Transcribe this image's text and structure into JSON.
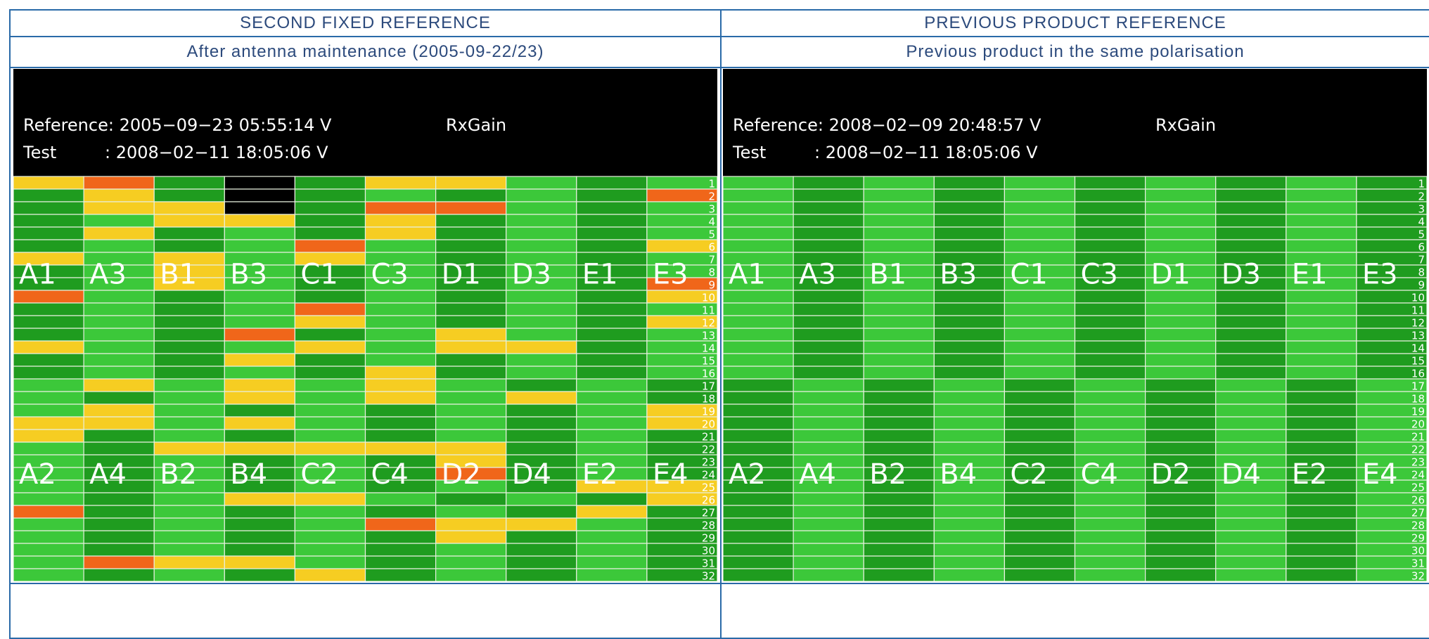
{
  "table": {
    "headers": [
      "SECOND FIXED REFERENCE",
      "PREVIOUS PRODUCT REFERENCE"
    ],
    "subheaders": [
      "After antenna maintenance (2005-09-22/23)",
      "Previous product in the same polarisation"
    ]
  },
  "palette": {
    "d": "#1f9c1f",
    "l": "#3cc83a",
    "y": "#f6cd22",
    "o": "#f0661a",
    "k": "#000000"
  },
  "column_labels_top": [
    "A1",
    "A3",
    "B1",
    "B3",
    "C1",
    "C3",
    "D1",
    "D3",
    "E1",
    "E3"
  ],
  "column_labels_bottom": [
    "A2",
    "A4",
    "B2",
    "B4",
    "C2",
    "C4",
    "D2",
    "D4",
    "E2",
    "E4"
  ],
  "row_labels": [
    "1",
    "2",
    "3",
    "4",
    "5",
    "6",
    "7",
    "8",
    "9",
    "10",
    "11",
    "12",
    "13",
    "14",
    "15",
    "16",
    "17",
    "18",
    "19",
    "20",
    "21",
    "22",
    "23",
    "24",
    "25",
    "26",
    "27",
    "28",
    "29",
    "30",
    "31",
    "32"
  ],
  "panels": [
    {
      "reference": "Reference: 2005−09−23 05:55:14 V",
      "parameter": "RxGain",
      "test_label": "Test",
      "test": ": 2008−02−11 18:05:06 V",
      "cells": [
        "yodkdyyldl",
        "dydkdldldo",
        "dyykdooldl",
        "dlyydydldl",
        "dydldydldl",
        "dldloldldy",
        "ylylyldldl",
        "dlyldldldl",
        "dlyldldldo",
        "oldldldldy",
        "dldloldldl",
        "dldlyldldy",
        "dldodlyldl",
        "yldlylyydl",
        "dldydldldl",
        "dldldydldl",
        "lylylyldld",
        "ldlylylyld",
        "lyldldldly",
        "yylyldldly",
        "ydldldldld",
        "ldyyyyydld",
        "ldldldydld",
        "ldldldodld",
        "ldldldldyy",
        "ldlyyldldy",
        "odldldldyd",
        "ldldloyyld",
        "ldldldydld",
        "ldldldldld",
        "loyyldldld",
        "ldldydldld"
      ]
    },
    {
      "reference": "Reference: 2008−02−09 20:48:57 V",
      "parameter": "RxGain",
      "test_label": "Test",
      "test": ": 2008−02−11 18:05:06 V",
      "cells": [
        "ldldldldld",
        "ldldldldld",
        "ldldldldld",
        "ldldldldld",
        "ldldldldld",
        "ldldldldld",
        "ldldldldld",
        "ldldldldld",
        "ldldldldld",
        "ldldldldld",
        "ldldldldld",
        "ldldldldld",
        "ldldldldld",
        "ldldldldld",
        "ldldldldld",
        "ldldldldld",
        "dldldldldl",
        "dldldldldl",
        "dldldldldl",
        "dldldldldl",
        "dldldldldl",
        "dldldldldl",
        "dldldldldl",
        "dldldldldl",
        "dldldldldl",
        "dldldldldl",
        "dldldldldl",
        "dldldldldl",
        "dldldldldl",
        "dldldldldl",
        "dldldldldl",
        "dldldldldl"
      ]
    }
  ]
}
